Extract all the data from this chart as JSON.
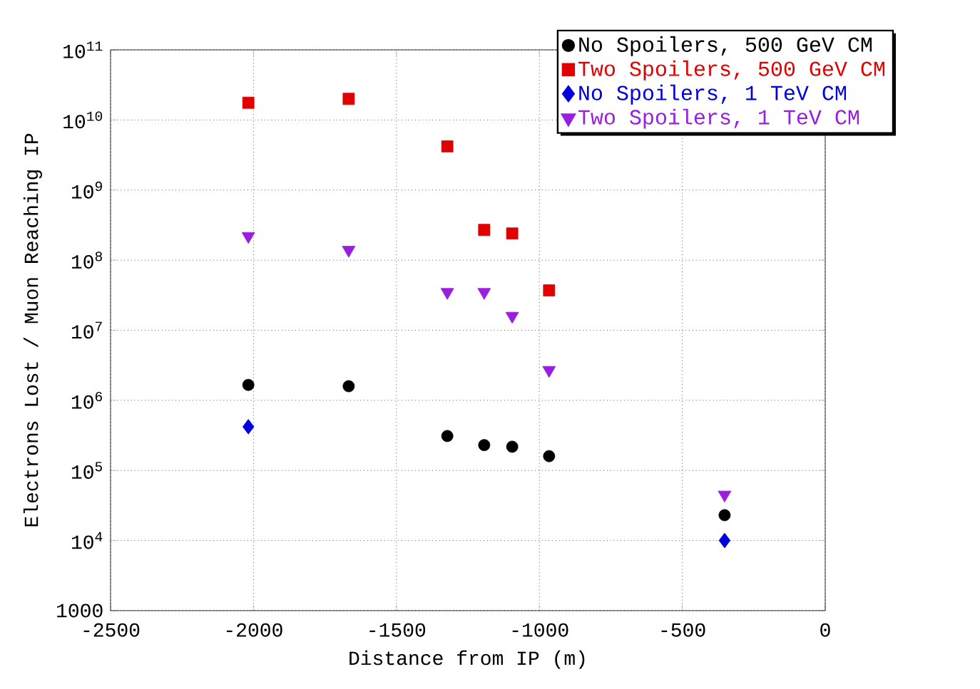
{
  "chart_data": {
    "type": "scatter",
    "xlabel": "Distance from IP (m)",
    "ylabel": "Electrons Lost / Muon Reaching IP",
    "log": "y",
    "grid": true,
    "legend": "top right",
    "xlim": [
      -2500,
      0
    ],
    "xticks": [
      -2500,
      -2000,
      -1500,
      -1000,
      -500,
      0
    ],
    "ylim": [
      1000,
      100000000000
    ],
    "yticks": [
      1000,
      {
        "value": 10000,
        "label": "10$^{4}$"
      },
      {
        "value": 100000,
        "label": "10$^{5}$"
      },
      {
        "value": 1000000,
        "label": "10$^{6}$"
      },
      {
        "value": 10000000,
        "label": "10$^{7}$"
      },
      {
        "value": 100000000,
        "label": "10$^{8}$"
      },
      {
        "value": 1000000000,
        "label": "10$^{9}$"
      },
      {
        "value": 10000000000,
        "label": "10$^{10}$"
      },
      {
        "value": 100000000000,
        "label": "10$^{11}$"
      }
    ],
    "series": [
      {
        "name": "No Spoilers, 500 GeV CM",
        "color": "#000000",
        "marker": "circle",
        "x": [
          -2018,
          -1667,
          -1322,
          -1193,
          -1095,
          -966,
          -352
        ],
        "values": [
          1660000,
          1590000,
          310000,
          230000,
          218000,
          160000,
          23000
        ]
      },
      {
        "name": "Two Spoilers, 500 GeV CM",
        "color": "#e00000",
        "marker": "square",
        "x": [
          -2018,
          -1667,
          -1322,
          -1193,
          -1095,
          -966
        ],
        "values": [
          17600000000,
          20000000000,
          4200000000,
          270000000,
          240000000,
          37000000
        ]
      },
      {
        "name": "No Spoilers, 1 TeV CM",
        "color": "#0000dd",
        "marker": "diamond",
        "x": [
          -2018,
          -352
        ],
        "values": [
          420000,
          10000
        ]
      },
      {
        "name": "Two Spoilers, 1 TeV CM",
        "color": "#9a1ee0",
        "marker": "triangle",
        "x": [
          -2018,
          -1667,
          -1322,
          -1193,
          -1095,
          -966,
          -352
        ],
        "values": [
          220000000,
          140000000,
          35000000,
          35000000,
          16000000,
          2700000,
          45000
        ]
      }
    ]
  }
}
